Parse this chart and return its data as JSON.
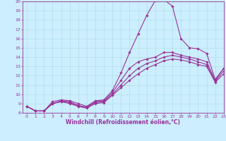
{
  "xlabel": "Windchill (Refroidissement éolien,°C)",
  "xlim": [
    -0.5,
    23
  ],
  "ylim": [
    8,
    20
  ],
  "xticks": [
    0,
    1,
    2,
    3,
    4,
    5,
    6,
    7,
    8,
    9,
    10,
    11,
    12,
    13,
    14,
    15,
    16,
    17,
    18,
    19,
    20,
    21,
    22,
    23
  ],
  "yticks": [
    8,
    9,
    10,
    11,
    12,
    13,
    14,
    15,
    16,
    17,
    18,
    19,
    20
  ],
  "background_color": "#cceeff",
  "grid_color": "#aadddd",
  "line_color": "#993399",
  "line1_y": [
    8.7,
    8.2,
    8.2,
    9.2,
    9.4,
    9.3,
    9.0,
    8.7,
    9.3,
    9.4,
    10.4,
    12.3,
    14.5,
    16.5,
    18.5,
    20.1,
    20.2,
    19.5,
    16.0,
    15.0,
    14.9,
    14.4,
    11.6,
    12.8
  ],
  "line2_y": [
    8.7,
    8.2,
    8.2,
    9.0,
    9.3,
    9.2,
    8.8,
    8.6,
    9.2,
    9.3,
    10.2,
    11.5,
    12.8,
    13.5,
    13.8,
    14.0,
    14.5,
    14.5,
    14.2,
    14.0,
    13.8,
    13.5,
    11.5,
    12.8
  ],
  "line3_y": [
    8.7,
    8.2,
    8.2,
    9.0,
    9.2,
    9.1,
    8.7,
    8.6,
    9.1,
    9.2,
    10.0,
    11.0,
    12.0,
    12.8,
    13.3,
    13.6,
    14.0,
    14.2,
    14.0,
    13.8,
    13.5,
    13.2,
    11.4,
    12.5
  ],
  "line4_y": [
    8.7,
    8.2,
    8.2,
    9.0,
    9.2,
    9.0,
    8.7,
    8.5,
    9.0,
    9.1,
    9.9,
    10.7,
    11.5,
    12.2,
    12.8,
    13.2,
    13.6,
    13.8,
    13.7,
    13.5,
    13.2,
    13.0,
    11.3,
    12.2
  ],
  "markersize": 1.8,
  "linewidth": 0.8,
  "tick_fontsize": 4.5,
  "xlabel_fontsize": 5.5
}
